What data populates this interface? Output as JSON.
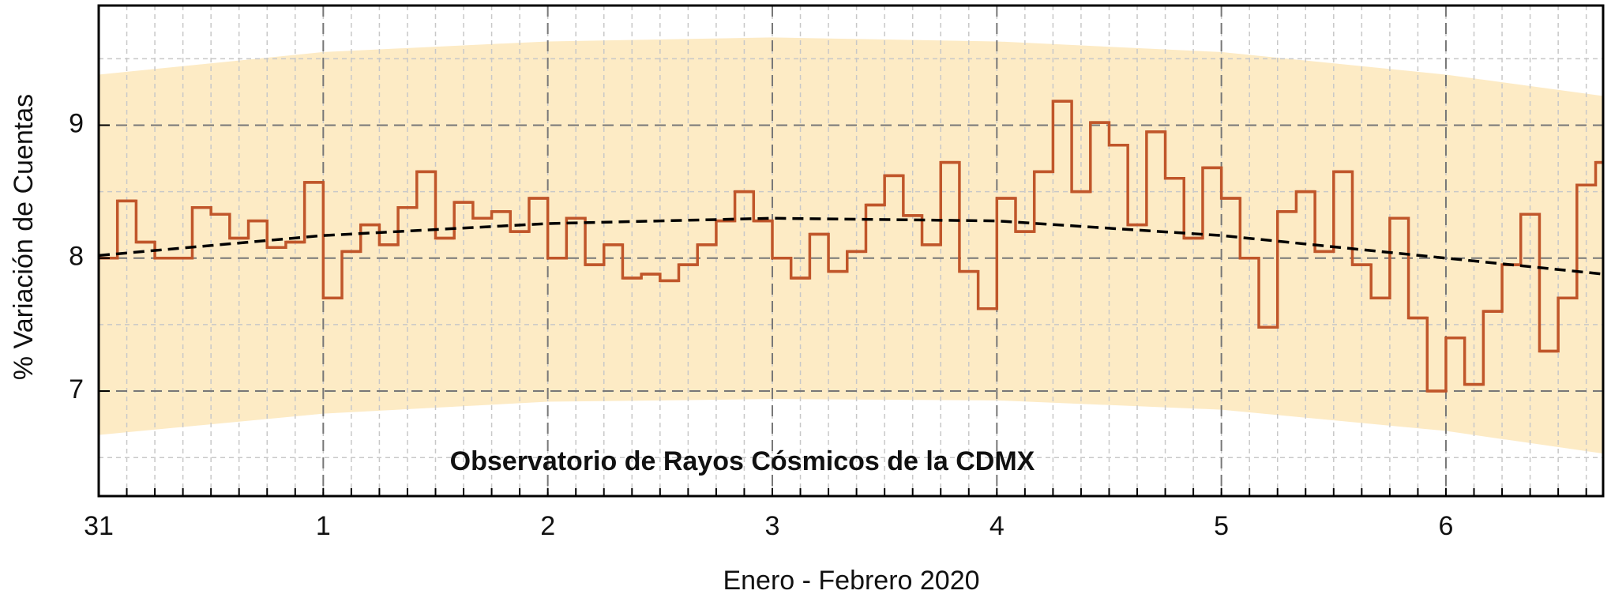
{
  "chart_data": {
    "type": "step",
    "xlabel": "Enero - Febrero 2020",
    "ylabel": "% Variación de Cuentas",
    "annotation": "Observatorio de Rayos Cósmicos de la CDMX",
    "xlim": [
      0,
      6.7
    ],
    "ylim": [
      6.21,
      9.9
    ],
    "xticks": [
      {
        "value": 0,
        "label": "31"
      },
      1,
      2,
      3,
      4,
      5,
      6
    ],
    "yticks": [
      7,
      8,
      9
    ],
    "yminor": [
      6.5,
      7.5,
      8.5,
      9.5
    ],
    "xminor_step": 0.125,
    "grid": true,
    "series": [
      {
        "color": "#c0562a",
        "x": [
          0,
          0.0833,
          0.1667,
          0.25,
          0.3333,
          0.4167,
          0.5,
          0.5833,
          0.6667,
          0.75,
          0.8333,
          0.9167,
          1,
          1.0833,
          1.1667,
          1.25,
          1.3333,
          1.4167,
          1.5,
          1.5833,
          1.6667,
          1.75,
          1.8333,
          1.9167,
          2,
          2.0833,
          2.1667,
          2.25,
          2.3333,
          2.4167,
          2.5,
          2.5833,
          2.6667,
          2.75,
          2.8333,
          2.9167,
          3,
          3.0833,
          3.1667,
          3.25,
          3.3333,
          3.4167,
          3.5,
          3.5833,
          3.6667,
          3.75,
          3.8333,
          3.9167,
          4,
          4.0833,
          4.1667,
          4.25,
          4.3333,
          4.4167,
          4.5,
          4.5833,
          4.6667,
          4.75,
          4.8333,
          4.9167,
          5,
          5.0833,
          5.1667,
          5.25,
          5.3333,
          5.4167,
          5.5,
          5.5833,
          5.6667,
          5.75,
          5.8333,
          5.9167,
          6,
          6.0833,
          6.1667,
          6.25,
          6.3333,
          6.4167,
          6.5,
          6.5833,
          6.6667
        ],
        "values": [
          8.0,
          8.43,
          8.12,
          8.0,
          8.0,
          8.38,
          8.33,
          8.15,
          8.28,
          8.08,
          8.12,
          8.57,
          7.7,
          8.05,
          8.25,
          8.1,
          8.38,
          8.65,
          8.15,
          8.42,
          8.3,
          8.35,
          8.2,
          8.45,
          8.0,
          8.3,
          7.95,
          8.1,
          7.85,
          7.88,
          7.83,
          7.95,
          8.1,
          8.28,
          8.5,
          8.28,
          8.0,
          7.85,
          8.18,
          7.9,
          8.05,
          8.4,
          8.62,
          8.32,
          8.1,
          8.72,
          7.9,
          7.62,
          8.45,
          8.2,
          8.65,
          9.18,
          8.5,
          9.02,
          8.85,
          8.25,
          8.95,
          8.6,
          8.15,
          8.68,
          8.45,
          8.0,
          7.48,
          8.35,
          8.5,
          8.05,
          8.65,
          7.95,
          7.7,
          8.3,
          7.55,
          7.0,
          7.4,
          7.05,
          7.6,
          7.95,
          8.33,
          7.3,
          7.7,
          8.55,
          8.72
        ]
      }
    ],
    "trend": {
      "color": "#000000",
      "x": [
        0,
        1,
        2,
        3,
        4,
        5,
        6,
        6.7
      ],
      "values": [
        8.02,
        8.17,
        8.26,
        8.3,
        8.28,
        8.17,
        8.0,
        7.88
      ]
    },
    "band": {
      "color": "#fdebc5",
      "x": [
        0,
        1,
        2,
        3,
        4,
        5,
        6,
        6.7
      ],
      "upper": [
        9.38,
        9.55,
        9.63,
        9.66,
        9.63,
        9.55,
        9.38,
        9.22
      ],
      "lower": [
        6.67,
        6.83,
        6.92,
        6.94,
        6.93,
        6.86,
        6.7,
        6.53
      ]
    }
  }
}
